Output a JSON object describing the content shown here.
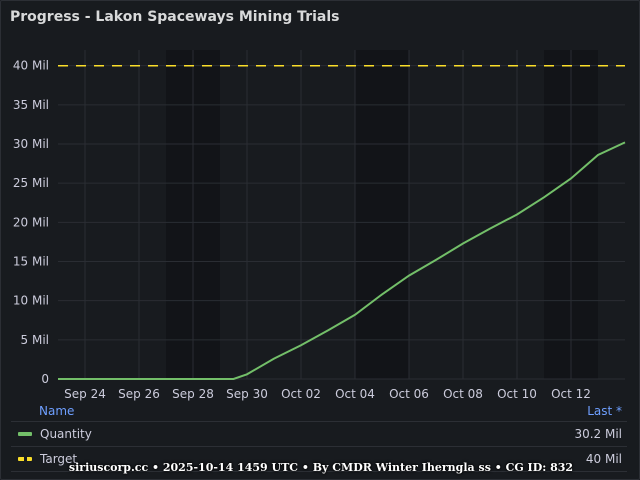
{
  "panel": {
    "title": "Progress - Lakon Spaceways Mining Trials"
  },
  "chart_data": {
    "type": "line",
    "title": "Progress - Lakon Spaceways Mining Trials",
    "x_start": "2025-09-23",
    "x_end": "2025-10-14",
    "xlim": [
      "2025-09-23",
      "2025-10-14"
    ],
    "ylim": [
      0,
      42
    ],
    "y_ticks": [
      0,
      5,
      10,
      15,
      20,
      25,
      30,
      35,
      40
    ],
    "y_tick_labels": [
      "0",
      "5 Mil",
      "10 Mil",
      "15 Mil",
      "20 Mil",
      "25 Mil",
      "30 Mil",
      "35 Mil",
      "40 Mil"
    ],
    "x_ticks": [
      "2025-09-24",
      "2025-09-26",
      "2025-09-28",
      "2025-09-30",
      "2025-10-02",
      "2025-10-04",
      "2025-10-06",
      "2025-10-08",
      "2025-10-10",
      "2025-10-12"
    ],
    "x_tick_labels": [
      "Sep 24",
      "Sep 26",
      "Sep 28",
      "Sep 30",
      "Oct 02",
      "Oct 04",
      "Oct 06",
      "Oct 08",
      "Oct 10",
      "Oct 12"
    ],
    "grid": true,
    "series": [
      {
        "name": "Quantity",
        "color": "#73bf69",
        "style": "solid",
        "points": [
          [
            "2025-09-23",
            0
          ],
          [
            "2025-09-25",
            0
          ],
          [
            "2025-09-27",
            0
          ],
          [
            "2025-09-29",
            0
          ],
          [
            "2025-09-29T12:00",
            0
          ],
          [
            "2025-09-30",
            0.6
          ],
          [
            "2025-10-01",
            2.6
          ],
          [
            "2025-10-02",
            4.3
          ],
          [
            "2025-10-03",
            6.2
          ],
          [
            "2025-10-04",
            8.2
          ],
          [
            "2025-10-05",
            10.8
          ],
          [
            "2025-10-06",
            13.2
          ],
          [
            "2025-10-07",
            15.2
          ],
          [
            "2025-10-08",
            17.3
          ],
          [
            "2025-10-09",
            19.2
          ],
          [
            "2025-10-10",
            21.0
          ],
          [
            "2025-10-11",
            23.2
          ],
          [
            "2025-10-12",
            25.6
          ],
          [
            "2025-10-13",
            28.6
          ],
          [
            "2025-10-14",
            30.2
          ]
        ]
      },
      {
        "name": "Target",
        "color": "#fade2a",
        "style": "dashed",
        "points": [
          [
            "2025-09-23",
            40
          ],
          [
            "2025-10-14",
            40
          ]
        ]
      }
    ]
  },
  "legend": {
    "header_name": "Name",
    "header_last": "Last *",
    "rows": [
      {
        "name": "Quantity",
        "last": "30.2 Mil",
        "color": "#73bf69"
      },
      {
        "name": "Target",
        "last": "40 Mil",
        "color": "#fade2a"
      }
    ]
  },
  "footer": {
    "text": "siriuscorp.cc • 2025-10-14 1459 UTC • By CMDR Winter Iherngla ss • CG ID: 832"
  }
}
